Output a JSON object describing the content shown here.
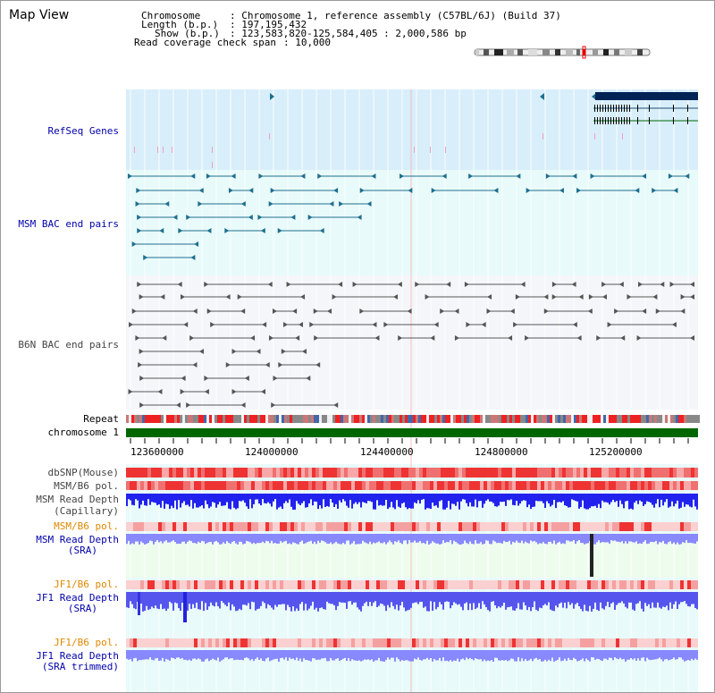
{
  "title": "Map View",
  "info": {
    "chromosome_key": "Chromosome",
    "chromosome_val": ": Chromosome 1, reference assembly (C57BL/6J) (Build 37)",
    "length_key": "Length (b.p.)",
    "length_val": ": 197,195,432",
    "show_key": "Show (b.p.)",
    "show_val": ": 123,583,820-125,584,405 : 2,000,586 bp",
    "span_key": "Read coverage check span",
    "span_val": ": 10,000"
  },
  "tracks": {
    "refseq": "RefSeq Genes",
    "msm_bac": "MSM BAC end pairs",
    "b6n_bac": "B6N BAC end pairs",
    "repeat": "Repeat",
    "chromosome": "chromosome 1",
    "dbsnp": "dbSNP(Mouse)",
    "msm_b6_pol_1": "MSM/B6 pol.",
    "msm_depth_cap_1": "MSM Read Depth",
    "msm_depth_cap_2": "(Capillary)",
    "msm_b6_pol_2": "MSM/B6 pol.",
    "msm_depth_sra_1": "MSM Read Depth",
    "msm_depth_sra_2": "(SRA)",
    "jf1_b6_pol_1": "JF1/B6 pol.",
    "jf1_depth_sra_1": "JF1 Read Depth",
    "jf1_depth_sra_2": "(SRA)",
    "jf1_b6_pol_2": "JF1/B6 pol.",
    "jf1_depth_trim_1": "JF1 Read Depth",
    "jf1_depth_trim_2": "(SRA trimmed)"
  },
  "axis": {
    "ticks": [
      "123600000",
      "124000000",
      "124400000",
      "124800000",
      "125200000"
    ]
  },
  "colors": {
    "label_blue": "#0000aa",
    "label_orange": "#e08800",
    "refseq_bg": "#d8eefa",
    "track_bg": "#e8fafa",
    "gene_navy": "#002255",
    "bac_teal": "#1f6f8f",
    "bac_gray": "#555555",
    "chrom_green": "#006600",
    "depth_blue": "#2222ee",
    "sra_blue": "#8888ff"
  }
}
